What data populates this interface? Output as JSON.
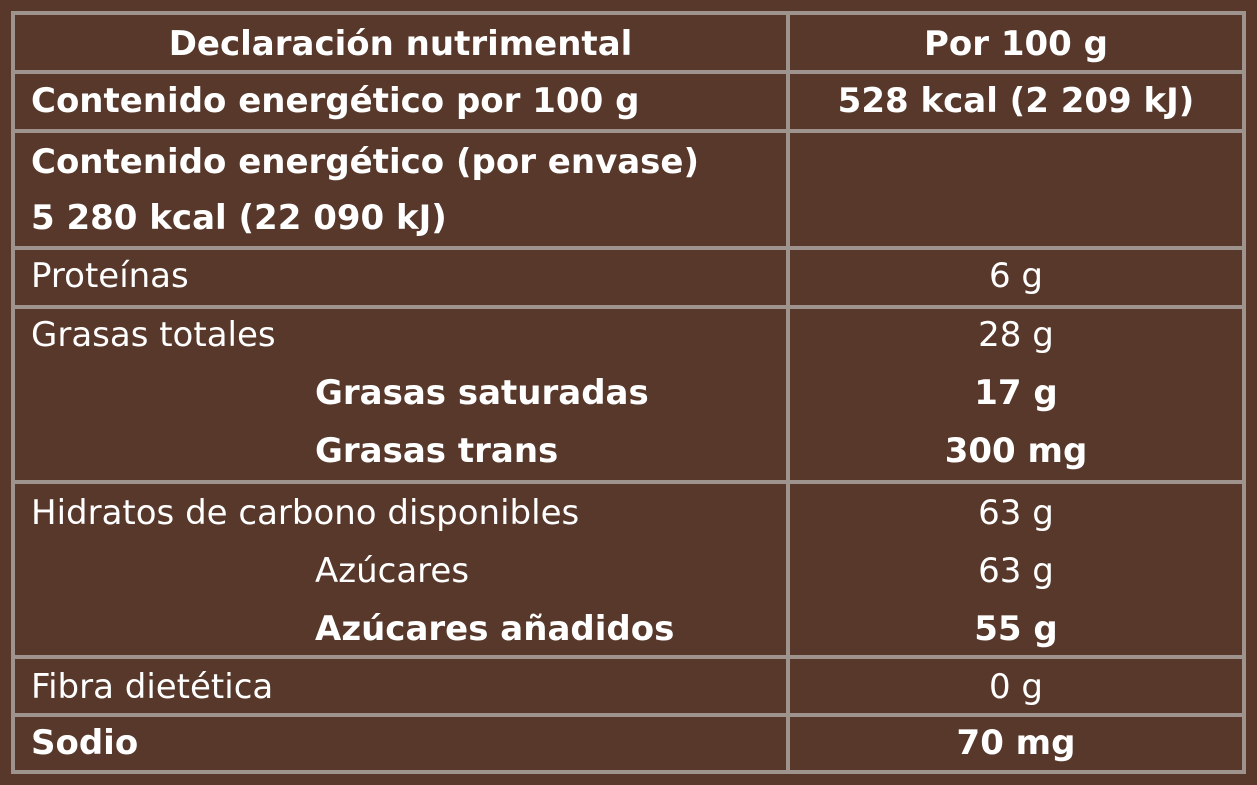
{
  "header": {
    "col1": "Declaración nutrimental",
    "col2": "Por 100 g"
  },
  "energy_100": {
    "label": "Contenido energético por 100 g",
    "value": "528 kcal (2 209 kJ)"
  },
  "energy_package": {
    "label": "Contenido energético (por envase)",
    "value": "5 280 kcal (22 090 kJ)"
  },
  "proteins": {
    "label": "Proteínas",
    "value": "6 g"
  },
  "fats": {
    "label": "Grasas totales",
    "value": "28 g",
    "saturated": {
      "label": "Grasas saturadas",
      "value": "17 g"
    },
    "trans": {
      "label": "Grasas trans",
      "value": "300 mg"
    }
  },
  "carbs": {
    "label": "Hidratos de carbono disponibles",
    "value": "63 g",
    "sugars": {
      "label": "Azúcares",
      "value": "63 g"
    },
    "added_sugars": {
      "label": "Azúcares añadidos",
      "value": "55 g"
    }
  },
  "fiber": {
    "label": "Fibra dietética",
    "value": "0 g"
  },
  "sodium": {
    "label": "Sodio",
    "value": "70 mg"
  },
  "colors": {
    "background": "#57382b",
    "border": "#9f938e",
    "text": "#ffffff"
  }
}
